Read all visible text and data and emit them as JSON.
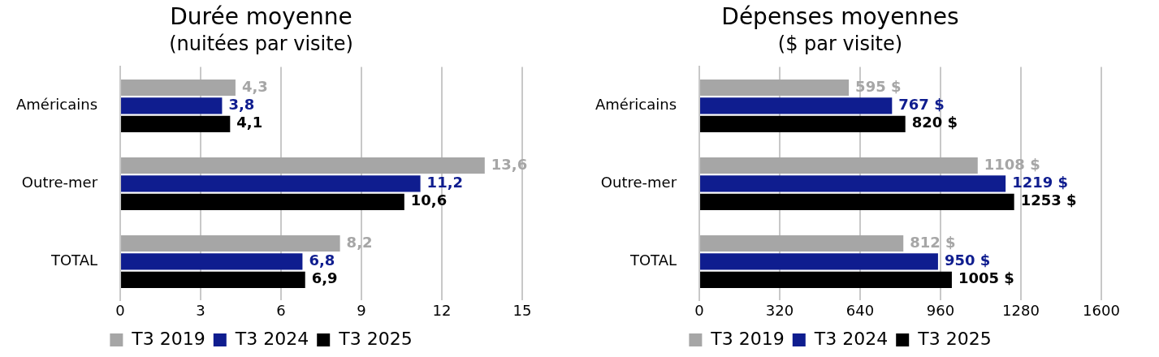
{
  "chart_data": [
    {
      "type": "bar",
      "orientation": "horizontal",
      "title": "Durée moyenne",
      "subtitle": "(nuitées par visite)",
      "categories": [
        "Américains",
        "Outre-mer",
        "TOTAL"
      ],
      "series": [
        {
          "name": "T3 2019",
          "color": "#a6a6a6",
          "values": [
            4.3,
            13.6,
            8.2
          ],
          "value_labels": [
            "4,3",
            "13,6",
            "8,2"
          ]
        },
        {
          "name": "T3 2024",
          "color": "#0f1d8f",
          "values": [
            3.8,
            11.2,
            6.8
          ],
          "value_labels": [
            "3,8",
            "11,2",
            "6,8"
          ]
        },
        {
          "name": "T3 2025",
          "color": "#000000",
          "values": [
            4.1,
            10.6,
            6.9
          ],
          "value_labels": [
            "4,1",
            "10,6",
            "6,9"
          ]
        }
      ],
      "xlim": [
        0,
        15
      ],
      "xticks": [
        0,
        3,
        6,
        9,
        12,
        15
      ],
      "grid": "x",
      "legend": "bottom"
    },
    {
      "type": "bar",
      "orientation": "horizontal",
      "title": "Dépenses moyennes",
      "subtitle": "($ par visite)",
      "categories": [
        "Américains",
        "Outre-mer",
        "TOTAL"
      ],
      "series": [
        {
          "name": "T3 2019",
          "color": "#a6a6a6",
          "values": [
            595,
            1108,
            812
          ],
          "value_labels": [
            "595 $",
            "1108 $",
            "812 $"
          ]
        },
        {
          "name": "T3 2024",
          "color": "#0f1d8f",
          "values": [
            767,
            1219,
            950
          ],
          "value_labels": [
            "767 $",
            "1219 $",
            "950 $"
          ]
        },
        {
          "name": "T3 2025",
          "color": "#000000",
          "values": [
            820,
            1253,
            1005
          ],
          "value_labels": [
            "820 $",
            "1253 $",
            "1005 $"
          ]
        }
      ],
      "xlim": [
        0,
        1600
      ],
      "xticks": [
        0,
        320,
        640,
        960,
        1280,
        1600
      ],
      "grid": "x",
      "legend": "bottom"
    }
  ]
}
